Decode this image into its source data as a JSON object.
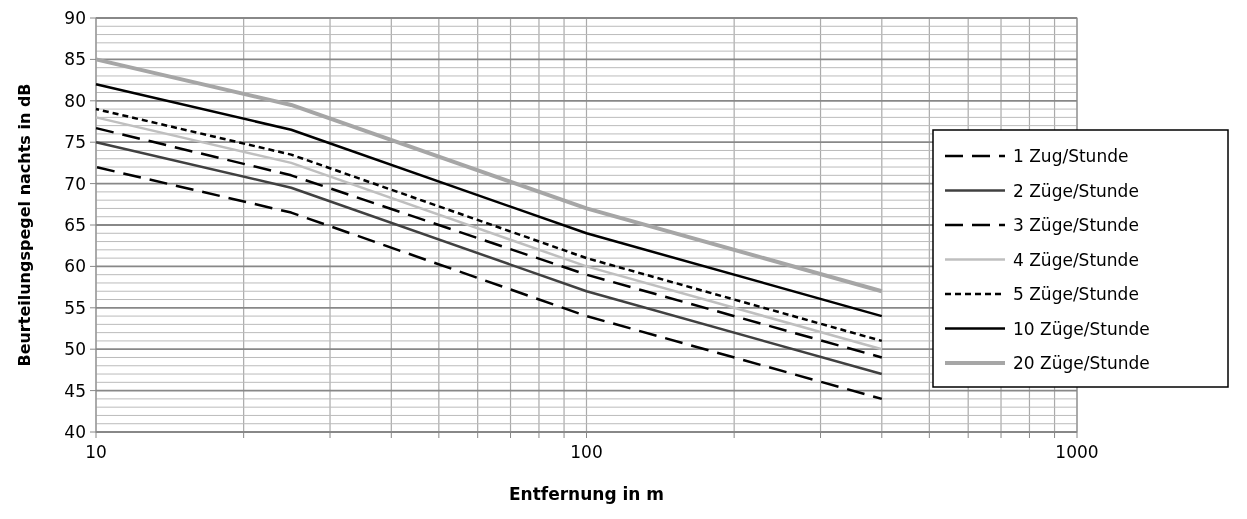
{
  "chart_data": {
    "type": "line",
    "xlabel": "Entfernung in m",
    "ylabel": "Beurteilungspegel nachts in dB",
    "log": "x",
    "grid": true,
    "legend": "right",
    "xlim": [
      10,
      1000
    ],
    "ylim": [
      40,
      90
    ],
    "xticks": [
      10,
      {
        "value": 20,
        "label": null
      },
      {
        "value": 30,
        "label": null
      },
      {
        "value": 40,
        "label": null
      },
      {
        "value": 50,
        "label": null
      },
      {
        "value": 60,
        "label": null
      },
      {
        "value": 70,
        "label": null
      },
      {
        "value": 80,
        "label": null
      },
      {
        "value": 90,
        "label": null
      },
      100,
      {
        "value": 200,
        "label": null
      },
      {
        "value": 300,
        "label": null
      },
      {
        "value": 400,
        "label": null
      },
      {
        "value": 500,
        "label": null
      },
      {
        "value": 600,
        "label": null
      },
      {
        "value": 700,
        "label": null
      },
      {
        "value": 800,
        "label": null
      },
      {
        "value": 900,
        "label": null
      },
      1000
    ],
    "yticks": [
      40,
      {
        "value": 41,
        "label": null
      },
      {
        "value": 42,
        "label": null
      },
      {
        "value": 43,
        "label": null
      },
      {
        "value": 44,
        "label": null
      },
      45,
      {
        "value": 46,
        "label": null
      },
      {
        "value": 47,
        "label": null
      },
      {
        "value": 48,
        "label": null
      },
      {
        "value": 49,
        "label": null
      },
      50,
      {
        "value": 51,
        "label": null
      },
      {
        "value": 52,
        "label": null
      },
      {
        "value": 53,
        "label": null
      },
      {
        "value": 54,
        "label": null
      },
      55,
      {
        "value": 56,
        "label": null
      },
      {
        "value": 57,
        "label": null
      },
      {
        "value": 58,
        "label": null
      },
      {
        "value": 59,
        "label": null
      },
      60,
      {
        "value": 61,
        "label": null
      },
      {
        "value": 62,
        "label": null
      },
      {
        "value": 63,
        "label": null
      },
      {
        "value": 64,
        "label": null
      },
      65,
      {
        "value": 66,
        "label": null
      },
      {
        "value": 67,
        "label": null
      },
      {
        "value": 68,
        "label": null
      },
      {
        "value": 69,
        "label": null
      },
      70,
      {
        "value": 71,
        "label": null
      },
      {
        "value": 72,
        "label": null
      },
      {
        "value": 73,
        "label": null
      },
      {
        "value": 74,
        "label": null
      },
      75,
      {
        "value": 76,
        "label": null
      },
      {
        "value": 77,
        "label": null
      },
      {
        "value": 78,
        "label": null
      },
      {
        "value": 79,
        "label": null
      },
      80,
      {
        "value": 81,
        "label": null
      },
      {
        "value": 82,
        "label": null
      },
      {
        "value": 83,
        "label": null
      },
      {
        "value": 84,
        "label": null
      },
      85,
      {
        "value": 86,
        "label": null
      },
      {
        "value": 87,
        "label": null
      },
      {
        "value": 88,
        "label": null
      },
      {
        "value": 89,
        "label": null
      },
      90
    ],
    "x": [
      10,
      25,
      100,
      400
    ],
    "series": [
      {
        "name": "1 Zug/Stunde",
        "color": "#000000",
        "line_style": "dashed",
        "values": [
          72,
          66.5,
          54,
          44
        ]
      },
      {
        "name": "2 Züge/Stunde",
        "color": "#404040",
        "line_style": "solid",
        "values": [
          75,
          69.5,
          57,
          47
        ]
      },
      {
        "name": "3 Züge/Stunde",
        "color": "#000000",
        "line_style": "dashed",
        "values": [
          76.7,
          71,
          59,
          49
        ]
      },
      {
        "name": "4 Züge/Stunde",
        "color": "#bfbfbf",
        "line_style": "solid",
        "values": [
          78,
          72.5,
          60,
          50
        ]
      },
      {
        "name": "5 Züge/Stunde",
        "color": "#000000",
        "line_style": "dotted",
        "values": [
          79,
          73.5,
          61,
          51
        ]
      },
      {
        "name": "10 Züge/Stunde",
        "color": "#000000",
        "line_style": "solid",
        "values": [
          82,
          76.5,
          64,
          54
        ]
      },
      {
        "name": "20 Züge/Stunde",
        "color": "#a6a6a6",
        "line_style": "solid",
        "values": [
          85,
          79.5,
          67,
          57
        ]
      }
    ]
  }
}
